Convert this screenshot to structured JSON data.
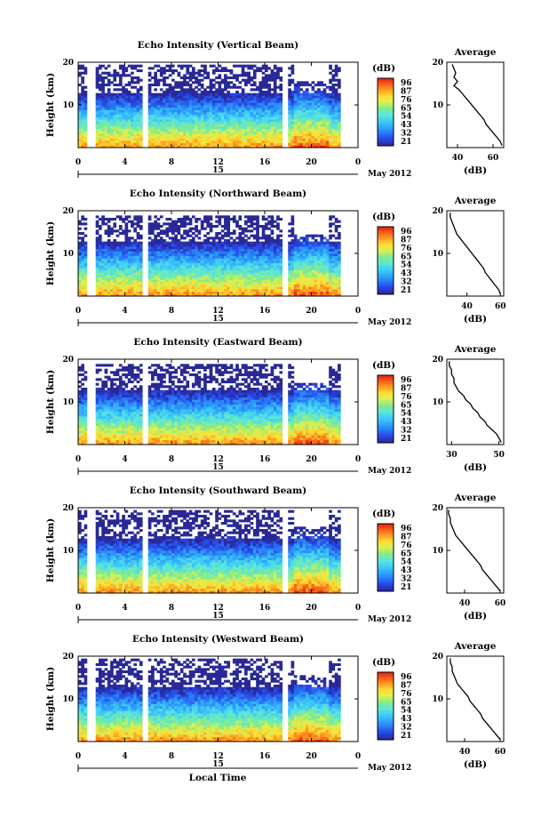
{
  "figure": {
    "xlabel": "Local Time",
    "date_label": "15",
    "month_label": "May 2012",
    "colorbar_unit": "(dB)",
    "average_title": "Average",
    "average_xlabel": "(dB)",
    "ylabel": "Height (km)"
  },
  "chart_data": [
    {
      "type": "heatmap",
      "title": "Echo Intensity (Vertical Beam)",
      "xlim": [
        0,
        24
      ],
      "ylim": [
        0,
        20
      ],
      "xticks": [
        "0",
        "4",
        "8",
        "12",
        "16",
        "20",
        "0"
      ],
      "yticks": [
        "10",
        "20"
      ],
      "colorbar_ticks": [
        "96",
        "87",
        "76",
        "65",
        "54",
        "43",
        "32",
        "21"
      ],
      "gaps_local_time": [
        1.1,
        5.7,
        17.7
      ],
      "echo_top_km": 19.5,
      "average_profile": {
        "xticks": [
          "40",
          "60"
        ],
        "xlim": [
          34,
          66
        ],
        "height_km": [
          0.5,
          1.5,
          2.5,
          3.5,
          4.5,
          5.5,
          6.5,
          7.5,
          8.5,
          9.5,
          10.5,
          11.5,
          12.5,
          13.5,
          14.5,
          15.5,
          16.5,
          17.5,
          18.5,
          19.5
        ],
        "db": [
          65,
          64,
          62,
          60,
          58,
          56,
          55,
          53,
          51,
          49,
          47,
          45,
          43,
          41,
          38,
          40,
          38,
          39,
          38,
          37
        ]
      }
    },
    {
      "type": "heatmap",
      "title": "Echo Intensity (Northward Beam)",
      "xlim": [
        0,
        24
      ],
      "ylim": [
        0,
        20
      ],
      "xticks": [
        "0",
        "4",
        "8",
        "12",
        "16",
        "20",
        "0"
      ],
      "yticks": [
        "10",
        "20"
      ],
      "colorbar_ticks": [
        "96",
        "87",
        "76",
        "65",
        "54",
        "43",
        "32",
        "21"
      ],
      "gaps_local_time": [
        1.1,
        5.7,
        17.7
      ],
      "echo_top_km": 18.5,
      "average_profile": {
        "xticks": [
          "40",
          "60"
        ],
        "xlim": [
          28,
          62
        ],
        "height_km": [
          0.5,
          1.5,
          2.5,
          3.5,
          4.5,
          5.5,
          6.5,
          7.5,
          8.5,
          9.5,
          10.5,
          11.5,
          12.5,
          13.5,
          14.5,
          15.5,
          16.5,
          17.5,
          18.5,
          19.5
        ],
        "db": [
          60,
          59,
          57,
          55,
          53,
          51,
          50,
          48,
          46,
          44,
          42,
          40,
          38,
          36,
          34,
          33,
          32,
          31,
          30,
          30
        ]
      }
    },
    {
      "type": "heatmap",
      "title": "Echo Intensity (Eastward Beam)",
      "xlim": [
        0,
        24
      ],
      "ylim": [
        0,
        20
      ],
      "xticks": [
        "0",
        "4",
        "8",
        "12",
        "16",
        "20",
        "0"
      ],
      "yticks": [
        "10",
        "20"
      ],
      "colorbar_ticks": [
        "96",
        "87",
        "76",
        "65",
        "54",
        "43",
        "32",
        "21"
      ],
      "gaps_local_time": [
        1.1,
        5.7,
        17.7
      ],
      "echo_top_km": 18.5,
      "average_profile": {
        "xticks": [
          "30",
          "50"
        ],
        "xlim": [
          28,
          52
        ],
        "height_km": [
          0.5,
          1.5,
          2.5,
          3.5,
          4.5,
          5.5,
          6.5,
          7.5,
          8.5,
          9.5,
          10.5,
          11.5,
          12.5,
          13.5,
          14.5,
          15.5,
          16.5,
          17.5,
          18.5,
          19.5
        ],
        "db": [
          51,
          50,
          49,
          47,
          45,
          44,
          42,
          41,
          39,
          38,
          36,
          35,
          33,
          32,
          31,
          31,
          30,
          30,
          29,
          29
        ]
      }
    },
    {
      "type": "heatmap",
      "title": "Echo Intensity (Southward Beam)",
      "xlim": [
        0,
        24
      ],
      "ylim": [
        0,
        20
      ],
      "xticks": [
        "0",
        "4",
        "8",
        "12",
        "16",
        "20",
        "0"
      ],
      "yticks": [
        "10",
        "20"
      ],
      "colorbar_ticks": [
        "96",
        "87",
        "76",
        "65",
        "54",
        "43",
        "32",
        "21"
      ],
      "gaps_local_time": [
        1.1,
        5.7,
        17.7
      ],
      "echo_top_km": 19.5,
      "average_profile": {
        "xticks": [
          "40",
          "60"
        ],
        "xlim": [
          30,
          62
        ],
        "height_km": [
          0.5,
          1.5,
          2.5,
          3.5,
          4.5,
          5.5,
          6.5,
          7.5,
          8.5,
          9.5,
          10.5,
          11.5,
          12.5,
          13.5,
          14.5,
          15.5,
          16.5,
          17.5,
          18.5,
          19.5
        ],
        "db": [
          60,
          58,
          56,
          54,
          52,
          50,
          49,
          47,
          45,
          43,
          41,
          39,
          37,
          35,
          34,
          33,
          32,
          32,
          31,
          31
        ]
      }
    },
    {
      "type": "heatmap",
      "title": "Echo Intensity (Westward Beam)",
      "xlim": [
        0,
        24
      ],
      "ylim": [
        0,
        20
      ],
      "xticks": [
        "0",
        "4",
        "8",
        "12",
        "16",
        "20",
        "0"
      ],
      "yticks": [
        "10",
        "20"
      ],
      "colorbar_ticks": [
        "96",
        "87",
        "76",
        "65",
        "54",
        "43",
        "32",
        "21"
      ],
      "gaps_local_time": [
        1.1,
        5.7,
        17.7
      ],
      "echo_top_km": 19.5,
      "average_profile": {
        "xticks": [
          "40",
          "60"
        ],
        "xlim": [
          30,
          62
        ],
        "height_km": [
          0.5,
          1.5,
          2.5,
          3.5,
          4.5,
          5.5,
          6.5,
          7.5,
          8.5,
          9.5,
          10.5,
          11.5,
          12.5,
          13.5,
          14.5,
          15.5,
          16.5,
          17.5,
          18.5,
          19.5
        ],
        "db": [
          60,
          58,
          56,
          54,
          52,
          50,
          49,
          47,
          45,
          43,
          42,
          40,
          38,
          36,
          35,
          34,
          33,
          33,
          32,
          32
        ]
      }
    }
  ]
}
